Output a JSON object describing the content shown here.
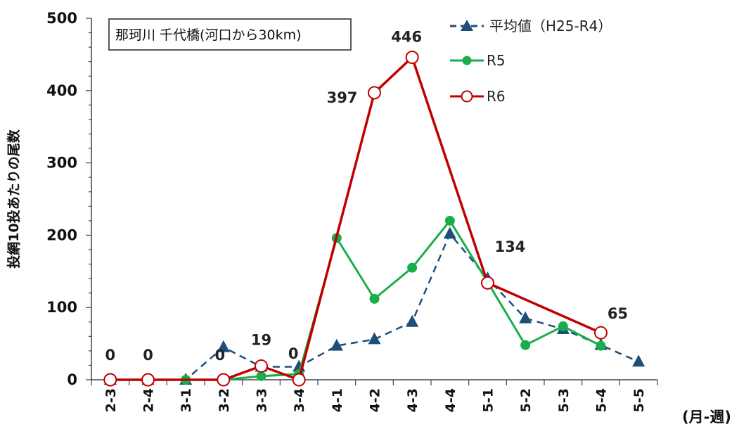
{
  "chart_data": {
    "type": "line",
    "title": "那珂川 千代橋(河口から30km)",
    "ylabel": "投網10投あたりの尾数",
    "xunit_label": "(月-週)",
    "ylim": [
      0,
      500
    ],
    "yticks": [
      "0",
      "100",
      "200",
      "300",
      "400",
      "500"
    ],
    "categories": [
      "2-3",
      "2-4",
      "3-1",
      "3-2",
      "3-3",
      "3-4",
      "4-1",
      "4-2",
      "4-3",
      "4-4",
      "5-1",
      "5-2",
      "5-3",
      "5-4",
      "5-5"
    ],
    "legend_position": "top-right",
    "grid": false,
    "series": [
      {
        "name": "平均値（H25-R4）",
        "style": "dashed-triangle",
        "color": "#1F4E79",
        "values": [
          0,
          0,
          0,
          45,
          18,
          18,
          47,
          56,
          80,
          202,
          140,
          85,
          70,
          48,
          25
        ]
      },
      {
        "name": "R5",
        "style": "solid-circle",
        "color": "#1AAE4A",
        "values": [
          null,
          null,
          0,
          0,
          5,
          8,
          196,
          112,
          155,
          220,
          135,
          48,
          74,
          47,
          null
        ]
      },
      {
        "name": "R6",
        "style": "solid-open-circle",
        "color": "#C00000",
        "values": [
          0,
          0,
          null,
          0,
          19,
          0,
          null,
          397,
          446,
          null,
          134,
          null,
          null,
          65,
          null
        ]
      }
    ],
    "data_labels": [
      {
        "category": "2-3",
        "text": "0"
      },
      {
        "category": "2-4",
        "text": "0"
      },
      {
        "category": "3-2",
        "text": "0"
      },
      {
        "category": "3-3",
        "text": "19"
      },
      {
        "category": "3-4",
        "text": "0"
      },
      {
        "category": "4-2",
        "text": "397"
      },
      {
        "category": "4-3",
        "text": "446"
      },
      {
        "category": "5-1",
        "text": "134"
      },
      {
        "category": "5-4",
        "text": "65"
      }
    ]
  }
}
